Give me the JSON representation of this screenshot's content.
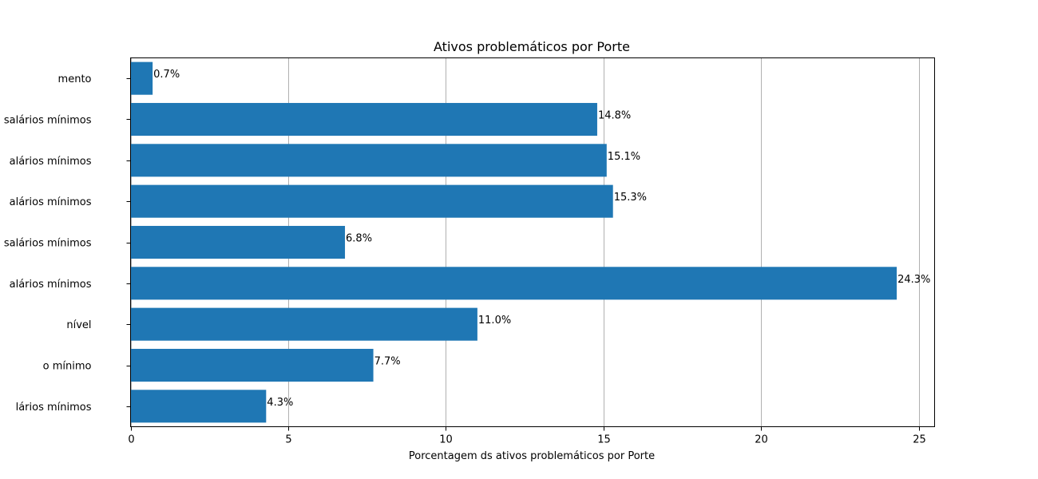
{
  "chart_data": {
    "type": "bar",
    "orientation": "horizontal",
    "title": "Ativos problemáticos por Porte",
    "xlabel": "Porcentagem ds ativos problemáticos por Porte",
    "ylabel": "",
    "categories": [
      "lários mínimos",
      "o mínimo",
      "nível",
      "alários mínimos",
      "salários mínimos",
      "alários mínimos",
      "alários mínimos",
      "salários mínimos",
      "mento"
    ],
    "values": [
      4.3,
      7.7,
      11.0,
      24.3,
      6.8,
      15.3,
      15.1,
      14.8,
      0.7
    ],
    "value_labels": [
      "4.3%",
      "7.7%",
      "11.0%",
      "24.3%",
      "6.8%",
      "15.3%",
      "15.1%",
      "14.8%",
      "0.7%"
    ],
    "xlim": [
      0,
      25.5
    ],
    "xticks": [
      0,
      5,
      10,
      15,
      20,
      25
    ],
    "xtick_labels": [
      "0",
      "5",
      "10",
      "15",
      "20",
      "25"
    ],
    "grid": "vertical",
    "legend": "none",
    "bar_color": "#1f77b4",
    "grid_color": "#b0b0b0"
  }
}
